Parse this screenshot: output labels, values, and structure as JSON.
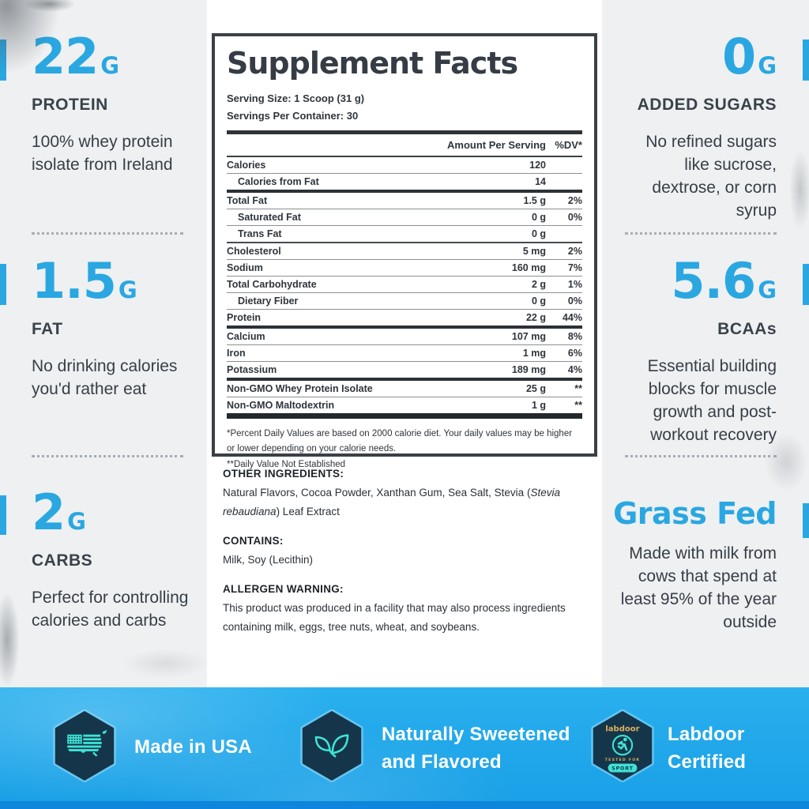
{
  "colors": {
    "accent_blue": "#2aa7e1",
    "footer_blue": "#1ba3e8",
    "footer_strip_blue": "#0e86dc",
    "hexagon_navy": "#15364a",
    "icon_teal": "#3fe3d6",
    "labdoor_gold": "#dcb05f",
    "text_dark": "#363c45"
  },
  "left_column": {
    "items": [
      {
        "value": "22",
        "unit": "G",
        "label": "PROTEIN",
        "description": "100% whey protein isolate from Ireland"
      },
      {
        "value": "1.5",
        "unit": "G",
        "label": "FAT",
        "description": "No drinking calories you'd rather eat"
      },
      {
        "value": "2",
        "unit": "G",
        "label": "CARBS",
        "description": "Perfect for controlling calories and carbs"
      }
    ]
  },
  "right_column": {
    "items": [
      {
        "value": "0",
        "unit": "G",
        "label": "ADDED SUGARS",
        "description": "No refined sugars like sucrose, dextrose, or corn syrup"
      },
      {
        "value": "5.6",
        "unit": "G",
        "label": "BCAAs",
        "description": "Essential building blocks for muscle growth and post-workout recovery"
      },
      {
        "heading": "Grass Fed",
        "description": "Made with milk from cows that spend at least 95% of the year outside"
      }
    ]
  },
  "panel": {
    "title": "Supplement Facts",
    "serving_size": "Serving Size: 1 Scoop (31 g)",
    "servings_per_container": "Servings Per Container: 30",
    "columns": {
      "amount": "Amount Per Serving",
      "dv": "%DV*"
    },
    "rows": [
      {
        "name": "Calories",
        "amount": "120",
        "dv": "",
        "indent": false,
        "divider": "thin"
      },
      {
        "name": "Calories from Fat",
        "amount": "14",
        "dv": "",
        "indent": true,
        "divider": "thick"
      },
      {
        "name": "Total Fat",
        "amount": "1.5 g",
        "dv": "2%",
        "indent": false,
        "divider": "thin"
      },
      {
        "name": "Saturated Fat",
        "amount": "0 g",
        "dv": "0%",
        "indent": true,
        "divider": "thin"
      },
      {
        "name": "Trans Fat",
        "amount": "0 g",
        "dv": "",
        "indent": true,
        "divider": "med"
      },
      {
        "name": "Cholesterol",
        "amount": "5 mg",
        "dv": "2%",
        "indent": false,
        "divider": "thin"
      },
      {
        "name": "Sodium",
        "amount": "160 mg",
        "dv": "7%",
        "indent": false,
        "divider": "thin"
      },
      {
        "name": "Total Carbohydrate",
        "amount": "2 g",
        "dv": "1%",
        "indent": false,
        "divider": "thin"
      },
      {
        "name": "Dietary Fiber",
        "amount": "0 g",
        "dv": "0%",
        "indent": true,
        "divider": "thin"
      },
      {
        "name": "Protein",
        "amount": "22 g",
        "dv": "44%",
        "indent": false,
        "divider": "thick"
      },
      {
        "name": "Calcium",
        "amount": "107 mg",
        "dv": "8%",
        "indent": false,
        "divider": "thin"
      },
      {
        "name": "Iron",
        "amount": "1 mg",
        "dv": "6%",
        "indent": false,
        "divider": "thin"
      },
      {
        "name": "Potassium",
        "amount": "189 mg",
        "dv": "4%",
        "indent": false,
        "divider": "thick"
      },
      {
        "name": "Non-GMO Whey Protein Isolate",
        "amount": "25 g",
        "dv": "**",
        "indent": false,
        "divider": "thin"
      },
      {
        "name": "Non-GMO Maltodextrin",
        "amount": "1 g",
        "dv": "**",
        "indent": false,
        "divider": "xthick"
      }
    ],
    "footnotes": [
      "*Percent Daily Values are based on 2000 calorie diet. Your daily values may be higher or lower depending on your calorie needs.",
      "**Daily Value Not Established"
    ]
  },
  "ingredients": {
    "other_heading": "OTHER INGREDIENTS:",
    "other_body_1": "Natural Flavors, Cocoa Powder, Xanthan Gum, Sea Salt, Stevia (",
    "other_italic": "Stevia rebaudiana",
    "other_body_2": ") Leaf Extract",
    "contains_heading": "CONTAINS:",
    "contains_body": "Milk, Soy (Lecithin)",
    "allergen_heading": "ALLERGEN WARNING:",
    "allergen_body": "This product was produced in a facility that may also process ingredients containing milk, eggs, tree nuts, wheat, and soybeans."
  },
  "footer": {
    "badges": [
      {
        "label": "Made in USA",
        "icon": "usa-map-flag-icon"
      },
      {
        "label": "Naturally Sweetened and Flavored",
        "icon": "leaves-icon"
      },
      {
        "label": "Labdoor Certified",
        "icon": "labdoor-sport-badge-icon",
        "badge_text": {
          "brand": "labdoor",
          "tested": "TESTED FOR",
          "sport": "SPORT"
        }
      }
    ]
  }
}
